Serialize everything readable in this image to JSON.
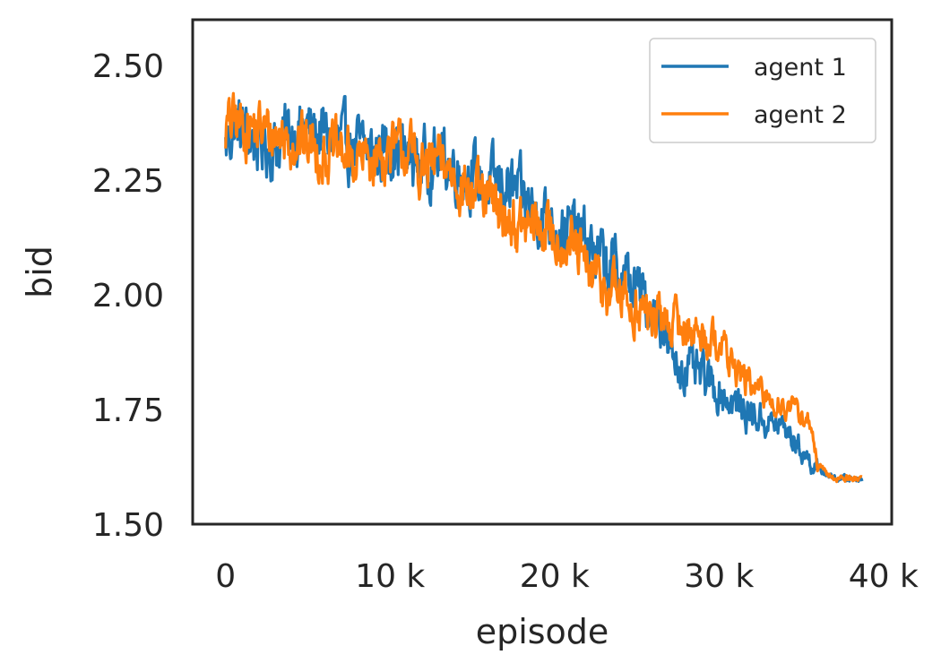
{
  "chart_data": {
    "type": "line",
    "title": "",
    "xlabel": "episode",
    "ylabel": "bid",
    "xlim": [
      -2000,
      40500
    ],
    "ylim": [
      1.5,
      2.6
    ],
    "xticks": [
      0,
      10000,
      20000,
      30000,
      40000
    ],
    "xtick_labels": [
      "0",
      "10 k",
      "20 k",
      "30 k",
      "40 k"
    ],
    "yticks": [
      1.5,
      1.75,
      2.0,
      2.25,
      2.5
    ],
    "ytick_labels": [
      "1.50",
      "1.75",
      "2.00",
      "2.25",
      "2.50"
    ],
    "grid": false,
    "legend_position": "top-right",
    "series": [
      {
        "name": "agent 1",
        "color": "#1f77b4",
        "noise": 0.055,
        "x": [
          0,
          500,
          1000,
          2000,
          3000,
          4000,
          5000,
          6000,
          7000,
          8000,
          9000,
          10000,
          11000,
          12000,
          13000,
          14000,
          15000,
          16000,
          17000,
          18000,
          19000,
          20000,
          21000,
          22000,
          23000,
          24000,
          25000,
          26000,
          26500,
          27000,
          28000,
          29000,
          30000,
          31000,
          32000,
          33000,
          34000,
          35000,
          36000,
          37000,
          38000,
          38700
        ],
        "y": [
          2.32,
          2.37,
          2.36,
          2.33,
          2.32,
          2.36,
          2.36,
          2.35,
          2.33,
          2.32,
          2.31,
          2.33,
          2.3,
          2.29,
          2.3,
          2.28,
          2.26,
          2.24,
          2.24,
          2.21,
          2.18,
          2.16,
          2.14,
          2.11,
          2.07,
          2.05,
          2.01,
          1.97,
          1.95,
          1.86,
          1.84,
          1.82,
          1.79,
          1.76,
          1.74,
          1.72,
          1.71,
          1.66,
          1.62,
          1.6,
          1.6,
          1.6
        ]
      },
      {
        "name": "agent 2",
        "color": "#ff7f0e",
        "noise": 0.05,
        "x": [
          0,
          500,
          1000,
          2000,
          3000,
          4000,
          5000,
          6000,
          7000,
          8000,
          9000,
          10000,
          11000,
          12000,
          13000,
          14000,
          15000,
          16000,
          17000,
          18000,
          19000,
          20000,
          21000,
          22000,
          23000,
          24000,
          25000,
          26000,
          27000,
          28000,
          29000,
          30000,
          31000,
          32000,
          33000,
          34000,
          35000,
          35500,
          36000,
          36500,
          37000,
          38000,
          38700
        ],
        "y": [
          2.36,
          2.38,
          2.37,
          2.36,
          2.35,
          2.34,
          2.33,
          2.31,
          2.31,
          2.29,
          2.3,
          2.31,
          2.32,
          2.27,
          2.29,
          2.26,
          2.22,
          2.2,
          2.17,
          2.14,
          2.15,
          2.13,
          2.11,
          2.05,
          2.02,
          2.0,
          1.97,
          1.95,
          1.94,
          1.93,
          1.91,
          1.9,
          1.84,
          1.8,
          1.77,
          1.76,
          1.74,
          1.72,
          1.63,
          1.61,
          1.6,
          1.6,
          1.6
        ]
      }
    ]
  }
}
